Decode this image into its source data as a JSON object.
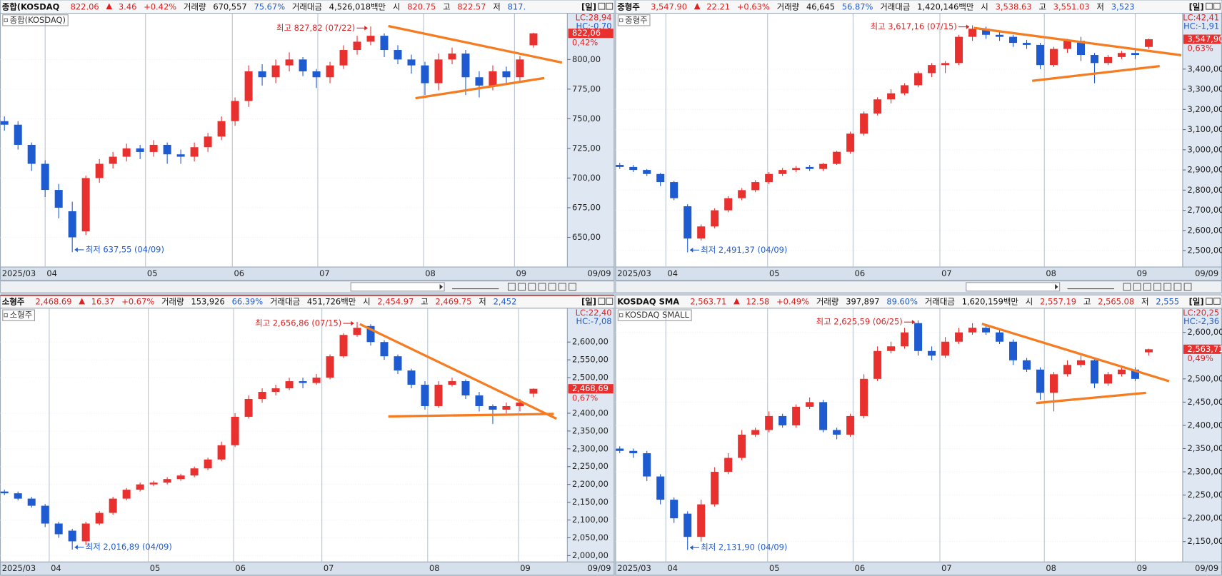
{
  "chart_data": [
    {
      "type": "candlestick",
      "label": "종합(KOSDAQ)",
      "header": {
        "name": "종합(KOSDAQ",
        "price": "822.06",
        "change": "3.46",
        "change_pct": "+0.42%",
        "volume_label": "거래량",
        "volume": "670,557",
        "volume_ratio": "75.67%",
        "amount_label": "거래대금",
        "amount": "4,526,018백만",
        "open_label": "시",
        "open": "820.75",
        "high_label": "고",
        "high": "822.57",
        "low_label": "저",
        "low": "817.",
        "period": "[일]"
      },
      "xlim": [
        -0.3,
        41.5
      ],
      "xticks": [
        {
          "value": -0.3,
          "label": "2025/03"
        },
        {
          "value": 3.0,
          "label": "04"
        },
        {
          "value": 10.4,
          "label": "05"
        },
        {
          "value": 16.8,
          "label": "06"
        },
        {
          "value": 23.1,
          "label": "07"
        },
        {
          "value": 30.9,
          "label": "08"
        },
        {
          "value": 37.6,
          "label": "09"
        }
      ],
      "last_date": "09/09",
      "ylim": [
        625,
        839
      ],
      "yticks": [
        {
          "value": 650,
          "label": "650,00"
        },
        {
          "value": 675,
          "label": "675,00"
        },
        {
          "value": 700,
          "label": "700,00"
        },
        {
          "value": 725,
          "label": "725,00"
        },
        {
          "value": 750,
          "label": "750,00"
        },
        {
          "value": 775,
          "label": "775,00"
        },
        {
          "value": 800,
          "label": "800,00"
        }
      ],
      "open": [
        748,
        745,
        728,
        712,
        690,
        672,
        655,
        700,
        712,
        718,
        725,
        722,
        728,
        720,
        718,
        726,
        735,
        748,
        765,
        790,
        785,
        795,
        800,
        790,
        785,
        795,
        808,
        815,
        820,
        808,
        800,
        795,
        780,
        800,
        805,
        785,
        778,
        790,
        785,
        812
      ],
      "high": [
        752,
        748,
        730,
        715,
        695,
        680,
        702,
        716,
        722,
        729,
        728,
        732,
        730,
        724,
        730,
        738,
        752,
        768,
        795,
        796,
        800,
        806,
        802,
        792,
        798,
        812,
        820,
        827.82,
        822,
        812,
        804,
        798,
        805,
        810,
        808,
        790,
        795,
        794,
        803,
        822.57
      ],
      "low": [
        740,
        724,
        706,
        684,
        666,
        637.55,
        652,
        696,
        708,
        714,
        716,
        718,
        712,
        712,
        714,
        722,
        732,
        744,
        760,
        778,
        780,
        790,
        786,
        776,
        780,
        792,
        804,
        812,
        802,
        796,
        788,
        770,
        774,
        796,
        770,
        768,
        774,
        780,
        782,
        810
      ],
      "close": [
        745,
        728,
        712,
        690,
        675,
        650,
        700,
        712,
        718,
        725,
        722,
        728,
        720,
        718,
        726,
        735,
        748,
        765,
        790,
        785,
        795,
        800,
        790,
        785,
        795,
        808,
        815,
        820,
        808,
        800,
        795,
        780,
        800,
        805,
        785,
        778,
        790,
        785,
        800,
        822.06
      ],
      "up_color": "#e8302f",
      "down_color": "#1f5bd0",
      "trend_color": "#f57c20",
      "trendlines": [
        {
          "x": [
            28.3,
            41.1
          ],
          "y": [
            828.2,
            797.4
          ]
        },
        {
          "x": [
            30.3,
            39.8
          ],
          "y": [
            767.3,
            784.3
          ]
        }
      ],
      "high_note": "최고 827,82 (07/22)",
      "low_note": "최저 637,55 (04/09)",
      "lc": "LC:28,94",
      "hc": "HC:-0,70",
      "last": {
        "value": 822.06,
        "label": "822,06"
      },
      "last_pct": "0,42%"
    },
    {
      "type": "candlestick",
      "label": "중형주",
      "header": {
        "name": "중형주",
        "price": "3,547.90",
        "change": "22.21",
        "change_pct": "+0.63%",
        "volume_label": "거래량",
        "volume": "46,645",
        "volume_ratio": "56.87%",
        "amount_label": "거래대금",
        "amount": "1,420,146백만",
        "open_label": "시",
        "open": "3,538.63",
        "high_label": "고",
        "high": "3,551.03",
        "low_label": "저",
        "low": "3,523",
        "period": "[일]"
      },
      "xlim": [
        -0.3,
        41.5
      ],
      "xticks": [
        {
          "value": -0.3,
          "label": "2025/03"
        },
        {
          "value": 3.4,
          "label": "04"
        },
        {
          "value": 10.9,
          "label": "05"
        },
        {
          "value": 17.2,
          "label": "06"
        },
        {
          "value": 23.6,
          "label": "07"
        },
        {
          "value": 31.3,
          "label": "08"
        },
        {
          "value": 38.0,
          "label": "09"
        }
      ],
      "last_date": "09/09",
      "ylim": [
        2419,
        3677
      ],
      "yticks": [
        {
          "value": 2500,
          "label": "2,500,00"
        },
        {
          "value": 2600,
          "label": "2,600,00"
        },
        {
          "value": 2700,
          "label": "2,700,00"
        },
        {
          "value": 2800,
          "label": "2,800,00"
        },
        {
          "value": 2900,
          "label": "2,900,00"
        },
        {
          "value": 3000,
          "label": "3,000,00"
        },
        {
          "value": 3100,
          "label": "3,100,00"
        },
        {
          "value": 3200,
          "label": "3,200,00"
        },
        {
          "value": 3300,
          "label": "3,300,00"
        },
        {
          "value": 3400,
          "label": "3,400,00"
        }
      ],
      "open": [
        2925,
        2915,
        2900,
        2880,
        2840,
        2720,
        2560,
        2620,
        2700,
        2760,
        2800,
        2840,
        2880,
        2900,
        2915,
        2905,
        2930,
        2990,
        3080,
        3180,
        3250,
        3280,
        3320,
        3380,
        3420,
        3430,
        3560,
        3600,
        3570,
        3560,
        3530,
        3520,
        3420,
        3500,
        3540,
        3470,
        3430,
        3460,
        3480,
        3510
      ],
      "high": [
        2935,
        2925,
        2905,
        2885,
        2845,
        2730,
        2630,
        2710,
        2770,
        2810,
        2850,
        2890,
        2910,
        2920,
        2925,
        2935,
        2995,
        3090,
        3190,
        3260,
        3300,
        3330,
        3390,
        3430,
        3440,
        3570,
        3617.16,
        3610,
        3585,
        3570,
        3545,
        3530,
        3510,
        3550,
        3560,
        3480,
        3470,
        3490,
        3500,
        3551.03
      ],
      "low": [
        2905,
        2890,
        2870,
        2820,
        2750,
        2491.37,
        2550,
        2610,
        2690,
        2750,
        2790,
        2830,
        2870,
        2890,
        2895,
        2895,
        2925,
        2980,
        3070,
        3170,
        3230,
        3270,
        3310,
        3360,
        3380,
        3420,
        3540,
        3550,
        3540,
        3510,
        3500,
        3400,
        3410,
        3480,
        3440,
        3330,
        3420,
        3450,
        3450,
        3500
      ],
      "close": [
        2915,
        2900,
        2880,
        2840,
        2760,
        2560,
        2620,
        2700,
        2760,
        2800,
        2840,
        2880,
        2900,
        2910,
        2905,
        2930,
        2990,
        3080,
        3180,
        3250,
        3280,
        3320,
        3380,
        3420,
        3430,
        3560,
        3600,
        3570,
        3560,
        3530,
        3520,
        3420,
        3500,
        3540,
        3470,
        3430,
        3460,
        3480,
        3470,
        3547.9
      ],
      "up_color": "#e8302f",
      "down_color": "#1f5bd0",
      "trend_color": "#f57c20",
      "trendlines": [
        {
          "x": [
            26.1,
            41.4
          ],
          "y": [
            3604,
            3469
          ]
        },
        {
          "x": [
            30.4,
            39.8
          ],
          "y": [
            3342,
            3415
          ]
        }
      ],
      "high_note": "최고 3,617,16 (07/15)",
      "low_note": "최저 2,491,37 (04/09)",
      "lc": "LC:42,41",
      "hc": "HC:-1,91",
      "last": {
        "value": 3547.9,
        "label": "3,547,90"
      },
      "last_pct": "0,63%"
    },
    {
      "type": "candlestick",
      "label": "소형주",
      "header": {
        "name": "소형주",
        "price": "2,468.69",
        "change": "16.37",
        "change_pct": "+0.67%",
        "volume_label": "거래량",
        "volume": "153,926",
        "volume_ratio": "66.39%",
        "amount_label": "거래대금",
        "amount": "451,726백만",
        "open_label": "시",
        "open": "2,454.97",
        "high_label": "고",
        "high": "2,469.75",
        "low_label": "저",
        "low": "2,452",
        "period": "[일]"
      },
      "xlim": [
        -0.3,
        41.5
      ],
      "xticks": [
        {
          "value": -0.3,
          "label": "2025/03"
        },
        {
          "value": 3.3,
          "label": "04"
        },
        {
          "value": 10.6,
          "label": "05"
        },
        {
          "value": 16.9,
          "label": "06"
        },
        {
          "value": 23.4,
          "label": "07"
        },
        {
          "value": 31.2,
          "label": "08"
        },
        {
          "value": 37.9,
          "label": "09"
        }
      ],
      "last_date": "09/09",
      "ylim": [
        1982,
        2695
      ],
      "yticks": [
        {
          "value": 2000,
          "label": "2,000,00"
        },
        {
          "value": 2050,
          "label": "2,050,00"
        },
        {
          "value": 2100,
          "label": "2,100,00"
        },
        {
          "value": 2150,
          "label": "2,150,00"
        },
        {
          "value": 2200,
          "label": "2,200,00"
        },
        {
          "value": 2250,
          "label": "2,250,00"
        },
        {
          "value": 2300,
          "label": "2,300,00"
        },
        {
          "value": 2350,
          "label": "2,350,00"
        },
        {
          "value": 2400,
          "label": "2,400,00"
        },
        {
          "value": 2500,
          "label": "2,500,00"
        },
        {
          "value": 2550,
          "label": "2,550,00"
        },
        {
          "value": 2600,
          "label": "2,600,00"
        }
      ],
      "open": [
        2180,
        2175,
        2160,
        2140,
        2090,
        2070,
        2040,
        2090,
        2120,
        2160,
        2185,
        2200,
        2205,
        2215,
        2225,
        2245,
        2270,
        2310,
        2390,
        2440,
        2460,
        2470,
        2490,
        2485,
        2500,
        2560,
        2620,
        2645,
        2600,
        2560,
        2520,
        2480,
        2420,
        2480,
        2490,
        2450,
        2420,
        2410,
        2420,
        2454.97
      ],
      "high": [
        2185,
        2180,
        2165,
        2145,
        2095,
        2075,
        2095,
        2125,
        2165,
        2190,
        2205,
        2210,
        2220,
        2230,
        2250,
        2275,
        2320,
        2400,
        2450,
        2470,
        2480,
        2500,
        2500,
        2510,
        2565,
        2625,
        2656.86,
        2650,
        2605,
        2565,
        2525,
        2490,
        2490,
        2500,
        2495,
        2460,
        2425,
        2430,
        2440,
        2469.75
      ],
      "low": [
        2170,
        2155,
        2135,
        2080,
        2050,
        2016.89,
        2030,
        2085,
        2115,
        2155,
        2180,
        2195,
        2200,
        2210,
        2220,
        2240,
        2265,
        2305,
        2385,
        2430,
        2450,
        2465,
        2470,
        2480,
        2495,
        2555,
        2615,
        2590,
        2550,
        2510,
        2470,
        2410,
        2415,
        2475,
        2440,
        2405,
        2370,
        2400,
        2405,
        2445
      ],
      "close": [
        2175,
        2160,
        2140,
        2090,
        2060,
        2040,
        2090,
        2120,
        2160,
        2185,
        2200,
        2205,
        2215,
        2225,
        2245,
        2270,
        2310,
        2390,
        2440,
        2460,
        2470,
        2490,
        2485,
        2500,
        2560,
        2620,
        2640,
        2600,
        2560,
        2520,
        2480,
        2420,
        2480,
        2490,
        2450,
        2420,
        2410,
        2420,
        2430,
        2468.69
      ],
      "up_color": "#e8302f",
      "down_color": "#1f5bd0",
      "trend_color": "#f57c20",
      "trendlines": [
        {
          "x": [
            26.2,
            40.7
          ],
          "y": [
            2650.5,
            2384.6
          ]
        },
        {
          "x": [
            28.3,
            40.5
          ],
          "y": [
            2391,
            2398
          ]
        }
      ],
      "high_note": "최고 2,656,86 (07/15)",
      "low_note": "최저 2,016,89 (04/09)",
      "lc": "LC:22,40",
      "hc": "HC:-7,08",
      "last": {
        "value": 2468.69,
        "label": "2,468,69"
      },
      "last_pct": "0,67%"
    },
    {
      "type": "candlestick",
      "label": "KOSDAQ SMALL",
      "header": {
        "name": "KOSDAQ SMA",
        "price": "2,563.71",
        "change": "12.58",
        "change_pct": "+0.49%",
        "volume_label": "거래량",
        "volume": "397,897",
        "volume_ratio": "89.60%",
        "amount_label": "거래대금",
        "amount": "1,620,159백만",
        "open_label": "시",
        "open": "2,557.19",
        "high_label": "고",
        "high": "2,565.08",
        "low_label": "저",
        "low": "2,555",
        "period": "[일]"
      },
      "xlim": [
        -0.3,
        41.5
      ],
      "xticks": [
        {
          "value": -0.3,
          "label": "2025/03"
        },
        {
          "value": 3.4,
          "label": "04"
        },
        {
          "value": 10.9,
          "label": "05"
        },
        {
          "value": 17.2,
          "label": "06"
        },
        {
          "value": 23.6,
          "label": "07"
        },
        {
          "value": 31.3,
          "label": "08"
        },
        {
          "value": 38.0,
          "label": "09"
        }
      ],
      "last_date": "09/09",
      "ylim": [
        2106,
        2652
      ],
      "yticks": [
        {
          "value": 2150,
          "label": "2,150,00"
        },
        {
          "value": 2200,
          "label": "2,200,00"
        },
        {
          "value": 2250,
          "label": "2,250,00"
        },
        {
          "value": 2300,
          "label": "2,300,00"
        },
        {
          "value": 2350,
          "label": "2,350,00"
        },
        {
          "value": 2400,
          "label": "2,400,00"
        },
        {
          "value": 2450,
          "label": "2,450,00"
        },
        {
          "value": 2500,
          "label": "2,500,00"
        },
        {
          "value": 2600,
          "label": "2,600,00"
        }
      ],
      "open": [
        2350,
        2345,
        2340,
        2290,
        2240,
        2210,
        2160,
        2230,
        2300,
        2330,
        2380,
        2390,
        2420,
        2400,
        2440,
        2450,
        2390,
        2380,
        2420,
        2500,
        2560,
        2570,
        2620,
        2560,
        2550,
        2580,
        2600,
        2610,
        2600,
        2580,
        2540,
        2520,
        2470,
        2510,
        2530,
        2540,
        2490,
        2510,
        2520,
        2557.19
      ],
      "high": [
        2355,
        2350,
        2345,
        2295,
        2245,
        2215,
        2240,
        2310,
        2340,
        2390,
        2395,
        2430,
        2425,
        2445,
        2460,
        2455,
        2395,
        2425,
        2510,
        2570,
        2580,
        2610,
        2625.59,
        2570,
        2590,
        2610,
        2620,
        2615,
        2605,
        2585,
        2545,
        2525,
        2515,
        2540,
        2550,
        2545,
        2515,
        2525,
        2525,
        2565.08
      ],
      "low": [
        2340,
        2330,
        2280,
        2230,
        2190,
        2131.9,
        2150,
        2225,
        2295,
        2325,
        2375,
        2385,
        2395,
        2395,
        2435,
        2385,
        2370,
        2375,
        2415,
        2495,
        2555,
        2565,
        2550,
        2540,
        2545,
        2575,
        2595,
        2595,
        2575,
        2530,
        2515,
        2455,
        2430,
        2505,
        2525,
        2480,
        2485,
        2505,
        2495,
        2550
      ],
      "close": [
        2345,
        2340,
        2290,
        2240,
        2200,
        2160,
        2230,
        2300,
        2330,
        2380,
        2390,
        2420,
        2400,
        2440,
        2450,
        2390,
        2380,
        2420,
        2500,
        2560,
        2570,
        2600,
        2560,
        2550,
        2580,
        2600,
        2610,
        2600,
        2580,
        2540,
        2520,
        2470,
        2510,
        2530,
        2540,
        2490,
        2510,
        2520,
        2500,
        2563.71
      ],
      "up_color": "#e8302f",
      "down_color": "#1f5bd0",
      "trend_color": "#f57c20",
      "trendlines": [
        {
          "x": [
            26.7,
            40.5
          ],
          "y": [
            2618.5,
            2495
          ]
        },
        {
          "x": [
            30.7,
            38.8
          ],
          "y": [
            2448,
            2470
          ]
        }
      ],
      "high_note": "최고 2,625,59 (06/25)",
      "low_note": "최저 2,131,90 (04/09)",
      "lc": "LC:20,25",
      "hc": "HC:-2,36",
      "last": {
        "value": 2563.71,
        "label": "2,563,71"
      },
      "last_pct": "0,49%"
    }
  ]
}
